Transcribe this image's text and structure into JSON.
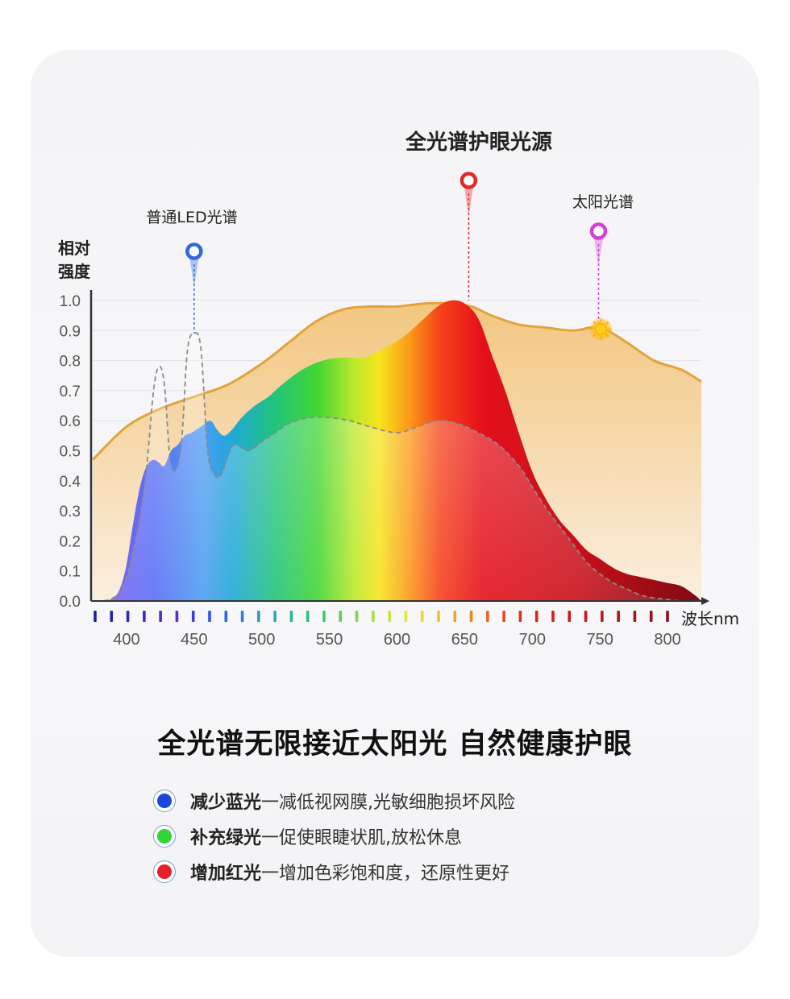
{
  "chart_data": {
    "type": "area",
    "title": "",
    "xlabel": "波长nm",
    "ylabel": "相对强度",
    "xlim": [
      375,
      825
    ],
    "ylim": [
      0,
      1.0
    ],
    "x_ticks": [
      400,
      450,
      500,
      550,
      600,
      650,
      700,
      750,
      800
    ],
    "y_ticks": [
      "0.0",
      "0.1",
      "0.2",
      "0.3",
      "0.4",
      "0.5",
      "0.6",
      "0.7",
      "0.8",
      "0.9",
      "1.0"
    ],
    "series": [
      {
        "name": "太阳光谱",
        "x": [
          375,
          400,
          425,
          450,
          475,
          500,
          520,
          540,
          560,
          580,
          600,
          620,
          640,
          655,
          670,
          690,
          710,
          730,
          750,
          770,
          790,
          810,
          825
        ],
        "y": [
          0.47,
          0.58,
          0.64,
          0.68,
          0.72,
          0.79,
          0.86,
          0.93,
          0.97,
          0.98,
          0.98,
          0.99,
          0.99,
          0.98,
          0.95,
          0.92,
          0.91,
          0.9,
          0.91,
          0.86,
          0.8,
          0.77,
          0.73
        ]
      },
      {
        "name": "全光谱护眼光源",
        "x": [
          377,
          383,
          390,
          395,
          400,
          405,
          410,
          415,
          420,
          424,
          428,
          433,
          438,
          443,
          448,
          455,
          462,
          467,
          472,
          478,
          485,
          495,
          505,
          515,
          530,
          545,
          560,
          575,
          590,
          605,
          620,
          630,
          640,
          650,
          660,
          670,
          680,
          690,
          700,
          710,
          720,
          730,
          740,
          750,
          760,
          770,
          780,
          790,
          800,
          810,
          820,
          825
        ],
        "y": [
          0,
          0,
          0.01,
          0.04,
          0.12,
          0.26,
          0.38,
          0.45,
          0.47,
          0.46,
          0.45,
          0.5,
          0.52,
          0.55,
          0.56,
          0.58,
          0.6,
          0.57,
          0.55,
          0.57,
          0.61,
          0.65,
          0.68,
          0.72,
          0.77,
          0.8,
          0.81,
          0.81,
          0.84,
          0.88,
          0.94,
          0.98,
          1.0,
          0.99,
          0.94,
          0.82,
          0.7,
          0.56,
          0.43,
          0.34,
          0.27,
          0.22,
          0.17,
          0.14,
          0.11,
          0.09,
          0.08,
          0.07,
          0.06,
          0.05,
          0.02,
          0
        ]
      },
      {
        "name": "普通LED光谱",
        "x": [
          377,
          383,
          390,
          395,
          400,
          405,
          410,
          415,
          420,
          424,
          428,
          433,
          440,
          445,
          450,
          455,
          460,
          465,
          470,
          475,
          480,
          490,
          500,
          510,
          520,
          535,
          550,
          565,
          580,
          600,
          615,
          630,
          645,
          660,
          675,
          690,
          700,
          710,
          720,
          730,
          740,
          750,
          760,
          770,
          780,
          790,
          800,
          810,
          820,
          825
        ],
        "y": [
          0,
          0,
          0.01,
          0.03,
          0.08,
          0.17,
          0.28,
          0.45,
          0.7,
          0.78,
          0.72,
          0.45,
          0.5,
          0.83,
          0.89,
          0.84,
          0.5,
          0.42,
          0.42,
          0.48,
          0.52,
          0.5,
          0.53,
          0.56,
          0.59,
          0.61,
          0.61,
          0.6,
          0.58,
          0.56,
          0.58,
          0.6,
          0.59,
          0.56,
          0.52,
          0.45,
          0.38,
          0.31,
          0.25,
          0.19,
          0.13,
          0.09,
          0.06,
          0.04,
          0.02,
          0.01,
          0.005,
          0,
          0,
          0
        ]
      }
    ],
    "markers": [
      {
        "name": "普通LED光谱",
        "color": "#2f6ad9",
        "x": 450,
        "y": 0.89
      },
      {
        "name": "全光谱护眼光源",
        "color": "#e3262d",
        "x": 653,
        "y": 1.0
      },
      {
        "name": "太阳光谱",
        "color": "#d43fd8",
        "x": 749,
        "y": 0.91
      }
    ],
    "legend": "annotations"
  },
  "headline": "全光谱无限接近太阳光 自然健康护眼",
  "features": [
    {
      "title": "减少蓝光",
      "desc": "一减低视网膜,光敏细胞损坏风险",
      "color": "#1a47e0"
    },
    {
      "title": "补充绿光",
      "desc": "一促使眼睫状肌,放松休息",
      "color": "#32d436"
    },
    {
      "title": "增加红光",
      "desc": "一增加色彩饱和度，还原性更好",
      "color": "#e6202a"
    }
  ]
}
